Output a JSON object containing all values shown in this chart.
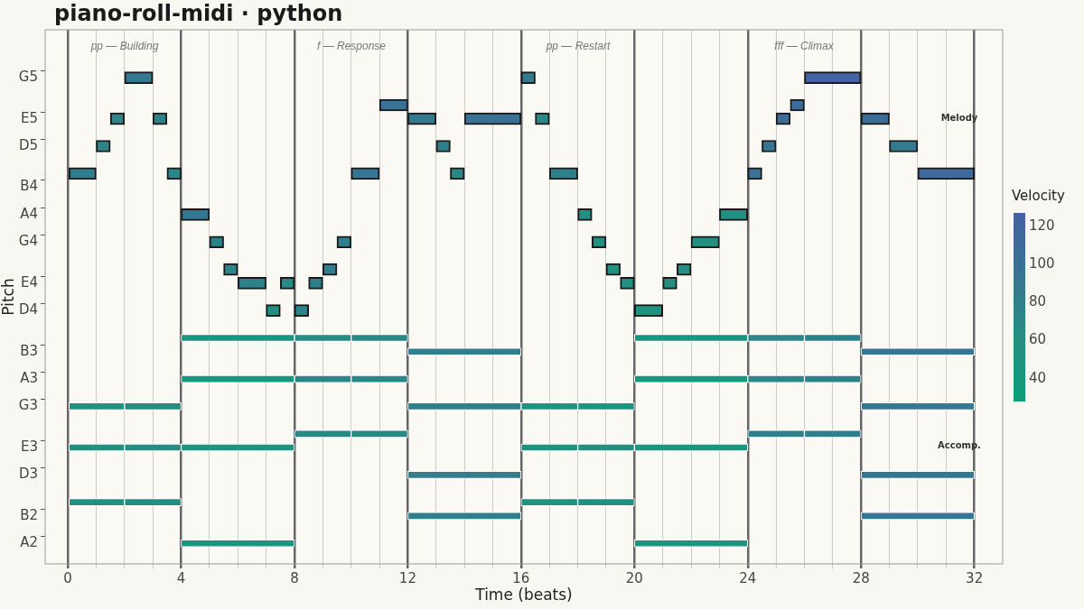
{
  "chart_data": {
    "type": "bar",
    "orientation": "horizontal",
    "title": "piano-roll-midi · python",
    "xlabel": "Time (beats)",
    "ylabel": "Pitch",
    "clabel": "Velocity",
    "clim": [
      28,
      127
    ],
    "cticks": [
      40,
      60,
      80,
      100,
      120
    ],
    "xlim": [
      -0.8,
      33
    ],
    "xticks": [
      0,
      {
        "value": 1,
        "label": null
      },
      {
        "value": 2,
        "label": null
      },
      {
        "value": 3,
        "label": null
      },
      4,
      {
        "value": 5,
        "label": null
      },
      {
        "value": 6,
        "label": null
      },
      {
        "value": 7,
        "label": null
      },
      8,
      {
        "value": 9,
        "label": null
      },
      {
        "value": 10,
        "label": null
      },
      {
        "value": 11,
        "label": null
      },
      12,
      {
        "value": 13,
        "label": null
      },
      {
        "value": 14,
        "label": null
      },
      {
        "value": 15,
        "label": null
      },
      16,
      {
        "value": 17,
        "label": null
      },
      {
        "value": 18,
        "label": null
      },
      {
        "value": 19,
        "label": null
      },
      20,
      {
        "value": 21,
        "label": null
      },
      {
        "value": 22,
        "label": null
      },
      {
        "value": 23,
        "label": null
      },
      24,
      {
        "value": 25,
        "label": null
      },
      {
        "value": 26,
        "label": null
      },
      {
        "value": 27,
        "label": null
      },
      28,
      {
        "value": 29,
        "label": null
      },
      {
        "value": 30,
        "label": null
      },
      {
        "value": 31,
        "label": null
      },
      32
    ],
    "grid": "x",
    "legend": false,
    "categories": [
      null,
      null,
      null,
      "G5",
      null,
      null,
      "E5",
      null,
      "D5",
      null,
      null,
      "B4",
      null,
      "A4",
      null,
      "G4",
      null,
      null,
      "E4",
      null,
      "D4",
      null,
      null,
      "B3",
      null,
      "A3",
      null,
      "G3",
      null,
      null,
      "E3",
      null,
      "D3",
      null,
      null,
      "B2",
      null,
      "A2",
      null
    ],
    "annotations": [
      "pp — Building",
      "f — Response",
      "pp — Restart",
      "fff — Climax",
      "Melody",
      "Accomp."
    ],
    "series": [
      {
        "values": [
          null,
          null,
          null,
          1,
          null,
          1,
          0.5,
          null,
          0.5,
          null,
          1,
          null,
          null,
          1,
          null,
          0.5,
          null,
          0.5,
          1,
          null,
          0.5,
          null,
          null,
          null,
          null,
          null,
          null,
          null,
          null,
          null,
          null,
          null,
          null,
          null,
          null,
          null,
          null,
          null,
          null
        ],
        "base": [
          null,
          null,
          null,
          2,
          null,
          11,
          1.5,
          null,
          1,
          null,
          0,
          null,
          null,
          4,
          null,
          5,
          null,
          5.5,
          6,
          null,
          7,
          null,
          null,
          null,
          null,
          null,
          null,
          null,
          null,
          null,
          null,
          null,
          null,
          null,
          null,
          null,
          null,
          null,
          null
        ],
        "colors": [
          null,
          null,
          null,
          "#337991",
          null,
          "#397197",
          "#2c8588",
          null,
          "#2c8588",
          null,
          "#307d8e",
          null,
          null,
          "#347792",
          null,
          "#2d828a",
          null,
          "#2c8588",
          "#2d828a",
          null,
          "#258e82",
          null,
          null,
          null,
          null,
          null,
          null,
          null,
          null,
          null,
          null,
          null,
          null,
          null,
          null,
          null,
          null,
          null,
          null
        ]
      },
      {
        "values": [
          null,
          null,
          null,
          0.5,
          null,
          0.5,
          0.5,
          null,
          0.5,
          null,
          0.5,
          null,
          null,
          0.5,
          null,
          0.5,
          null,
          0.5,
          0.5,
          null,
          0.5,
          null,
          null,
          null,
          null,
          null,
          null,
          null,
          null,
          null,
          null,
          null,
          null,
          null,
          null,
          null,
          null,
          null,
          null
        ],
        "base": [
          null,
          null,
          null,
          16,
          null,
          25.5,
          3,
          null,
          13,
          null,
          3.5,
          null,
          null,
          18,
          null,
          9.5,
          null,
          9,
          7.5,
          null,
          8,
          null,
          null,
          null,
          null,
          null,
          null,
          null,
          null,
          null,
          null,
          null,
          null,
          null,
          null,
          null,
          null,
          null,
          null
        ],
        "colors": [
          null,
          null,
          null,
          "#327b8f",
          null,
          "#3d6b9c",
          "#2d828a",
          null,
          "#2e818b",
          null,
          "#2a8787",
          null,
          null,
          "#258e82",
          null,
          "#307d8e",
          null,
          "#307d8e",
          "#288a85",
          null,
          "#2c8588",
          null,
          null,
          null,
          null,
          null,
          null,
          null,
          null,
          null,
          null,
          null,
          null,
          null,
          null,
          null,
          null,
          null,
          null
        ]
      },
      {
        "values": [
          null,
          null,
          null,
          2,
          null,
          null,
          1,
          null,
          0.5,
          null,
          1,
          null,
          null,
          1,
          null,
          0.5,
          null,
          0.5,
          0.5,
          null,
          1,
          null,
          null,
          null,
          null,
          null,
          null,
          null,
          null,
          null,
          null,
          null,
          null,
          null,
          null,
          null,
          null,
          null,
          null
        ],
        "base": [
          null,
          null,
          null,
          26,
          null,
          null,
          12,
          null,
          24.5,
          null,
          10,
          null,
          null,
          23,
          null,
          18.5,
          null,
          19,
          8.5,
          null,
          20,
          null,
          null,
          null,
          null,
          null,
          null,
          null,
          null,
          null,
          null,
          null,
          null,
          null,
          null,
          null,
          null,
          null,
          null
        ],
        "colors": [
          null,
          null,
          null,
          "#4463a5",
          null,
          null,
          "#327b8f",
          null,
          "#367594",
          null,
          "#367594",
          null,
          null,
          "#248f81",
          null,
          "#248f81",
          null,
          "#229081",
          "#2e818b",
          null,
          "#209280",
          null,
          null,
          null,
          null,
          null,
          null,
          null,
          null,
          null,
          null,
          null,
          null,
          null,
          null,
          null,
          null,
          null,
          null
        ]
      },
      {
        "values": [
          null,
          null,
          null,
          null,
          null,
          null,
          2,
          null,
          1,
          null,
          0.5,
          null,
          null,
          null,
          null,
          1,
          null,
          0.5,
          0.5,
          null,
          null,
          null,
          null,
          null,
          null,
          null,
          null,
          null,
          null,
          null,
          null,
          null,
          null,
          null,
          null,
          null,
          null,
          null,
          null
        ],
        "base": [
          null,
          null,
          null,
          null,
          null,
          null,
          14,
          null,
          29,
          null,
          13.5,
          null,
          null,
          null,
          null,
          22,
          null,
          21.5,
          19.5,
          null,
          null,
          null,
          null,
          null,
          null,
          null,
          null,
          null,
          null,
          null,
          null,
          null,
          null,
          null,
          null,
          null,
          null,
          null,
          null
        ],
        "colors": [
          null,
          null,
          null,
          null,
          null,
          null,
          "#397197",
          null,
          "#327b8f",
          null,
          "#2a8787",
          null,
          null,
          null,
          null,
          "#248f81",
          null,
          "#258e82",
          "#229081",
          null,
          null,
          null,
          null,
          null,
          null,
          null,
          null,
          null,
          null,
          null,
          null,
          null,
          null,
          null,
          null,
          null,
          null,
          null,
          null
        ]
      },
      {
        "values": [
          null,
          null,
          null,
          null,
          null,
          null,
          0.5,
          null,
          null,
          null,
          1,
          null,
          null,
          null,
          null,
          null,
          null,
          null,
          0.5,
          null,
          null,
          null,
          null,
          null,
          null,
          null,
          null,
          null,
          null,
          null,
          null,
          null,
          null,
          null,
          null,
          null,
          null,
          null,
          null
        ],
        "base": [
          null,
          null,
          null,
          null,
          null,
          null,
          16.5,
          null,
          null,
          null,
          17,
          null,
          null,
          null,
          null,
          null,
          null,
          null,
          21,
          null,
          null,
          null,
          null,
          null,
          null,
          null,
          null,
          null,
          null,
          null,
          null,
          null,
          null,
          null,
          null,
          null,
          null,
          null,
          null
        ],
        "colors": [
          null,
          null,
          null,
          null,
          null,
          null,
          "#298886",
          null,
          null,
          null,
          "#2e818b",
          null,
          null,
          null,
          null,
          null,
          null,
          null,
          "#248f81",
          null,
          null,
          null,
          null,
          null,
          null,
          null,
          null,
          null,
          null,
          null,
          null,
          null,
          null,
          null,
          null,
          null,
          null,
          null,
          null
        ]
      },
      {
        "values": [
          null,
          null,
          null,
          null,
          null,
          null,
          0.5,
          null,
          null,
          null,
          0.5,
          null,
          null,
          null,
          null,
          null,
          null,
          null,
          null,
          null,
          null,
          null,
          null,
          null,
          null,
          null,
          null,
          null,
          null,
          null,
          null,
          null,
          null,
          null,
          null,
          null,
          null,
          null,
          null
        ],
        "base": [
          null,
          null,
          null,
          null,
          null,
          null,
          25,
          null,
          null,
          null,
          24,
          null,
          null,
          null,
          null,
          null,
          null,
          null,
          null,
          null,
          null,
          null,
          null,
          null,
          null,
          null,
          null,
          null,
          null,
          null,
          null,
          null,
          null,
          null,
          null,
          null,
          null,
          null,
          null
        ],
        "colors": [
          null,
          null,
          null,
          null,
          null,
          null,
          "#3b6d9a",
          null,
          null,
          null,
          "#397197",
          null,
          null,
          null,
          null,
          null,
          null,
          null,
          null,
          null,
          null,
          null,
          null,
          null,
          null,
          null,
          null,
          null,
          null,
          null,
          null,
          null,
          null,
          null,
          null,
          null,
          null,
          null,
          null
        ]
      },
      {
        "values": [
          null,
          null,
          null,
          null,
          null,
          null,
          1,
          null,
          null,
          null,
          2,
          null,
          null,
          null,
          null,
          null,
          null,
          null,
          null,
          null,
          null,
          null,
          null,
          null,
          null,
          null,
          null,
          null,
          null,
          null,
          null,
          null,
          null,
          null,
          null,
          null,
          null,
          null,
          null
        ],
        "base": [
          null,
          null,
          null,
          null,
          null,
          null,
          28,
          null,
          null,
          null,
          30,
          null,
          null,
          null,
          null,
          null,
          null,
          null,
          null,
          null,
          null,
          null,
          null,
          null,
          null,
          null,
          null,
          null,
          null,
          null,
          null,
          null,
          null,
          null,
          null,
          null,
          null,
          null,
          null
        ],
        "colors": [
          null,
          null,
          null,
          null,
          null,
          null,
          "#3b6d9a",
          null,
          null,
          null,
          "#3e6a9d",
          null,
          null,
          null,
          null,
          null,
          null,
          null,
          null,
          null,
          null,
          null,
          null,
          null,
          null,
          null,
          null,
          null,
          null,
          null,
          null,
          null,
          null,
          null,
          null,
          null,
          null,
          null,
          null
        ]
      },
      {
        "values": [
          null,
          null,
          null,
          null,
          null,
          null,
          null,
          null,
          null,
          null,
          null,
          null,
          null,
          null,
          null,
          null,
          null,
          null,
          null,
          null,
          null,
          null,
          4,
          4,
          null,
          4,
          null,
          2,
          null,
          2,
          2,
          null,
          4,
          null,
          2,
          4,
          null,
          4,
          null
        ],
        "base": [
          null,
          null,
          null,
          null,
          null,
          null,
          null,
          null,
          null,
          null,
          null,
          null,
          null,
          null,
          null,
          null,
          null,
          null,
          null,
          null,
          null,
          null,
          4,
          12,
          null,
          4,
          null,
          0,
          null,
          8,
          0,
          null,
          12,
          null,
          0,
          12,
          null,
          4,
          null
        ],
        "colors": [
          null,
          null,
          null,
          null,
          null,
          null,
          null,
          null,
          null,
          null,
          null,
          null,
          null,
          null,
          null,
          null,
          null,
          null,
          null,
          null,
          null,
          null,
          "#1c947f",
          "#2f7f8c",
          null,
          "#18977d",
          null,
          "#209280",
          null,
          "#2a8787",
          "#229081",
          null,
          "#2f7f8c",
          null,
          "#229081",
          "#2f7f8c",
          null,
          "#1b957e",
          null
        ]
      },
      {
        "values": [
          null,
          null,
          null,
          null,
          null,
          null,
          null,
          null,
          null,
          null,
          null,
          null,
          null,
          null,
          null,
          null,
          null,
          null,
          null,
          null,
          null,
          null,
          2,
          4,
          null,
          2,
          null,
          2,
          null,
          2,
          2,
          null,
          4,
          null,
          2,
          4,
          null,
          4,
          null
        ],
        "base": [
          null,
          null,
          null,
          null,
          null,
          null,
          null,
          null,
          null,
          null,
          null,
          null,
          null,
          null,
          null,
          null,
          null,
          null,
          null,
          null,
          null,
          null,
          8,
          28,
          null,
          8,
          null,
          2,
          null,
          10,
          2,
          null,
          28,
          null,
          2,
          28,
          null,
          20,
          null
        ],
        "colors": [
          null,
          null,
          null,
          null,
          null,
          null,
          null,
          null,
          null,
          null,
          null,
          null,
          null,
          null,
          null,
          null,
          null,
          null,
          null,
          null,
          null,
          null,
          "#278c83",
          "#367594",
          null,
          "#2c8588",
          null,
          "#248f81",
          null,
          "#2a8787",
          "#258e82",
          null,
          "#347792",
          null,
          "#258e82",
          "#347792",
          null,
          "#1b957e",
          null
        ]
      },
      {
        "values": [
          null,
          null,
          null,
          null,
          null,
          null,
          null,
          null,
          null,
          null,
          null,
          null,
          null,
          null,
          null,
          null,
          null,
          null,
          null,
          null,
          null,
          null,
          2,
          null,
          null,
          2,
          null,
          4,
          null,
          2,
          4,
          null,
          null,
          null,
          2,
          null,
          null,
          null,
          null
        ],
        "base": [
          null,
          null,
          null,
          null,
          null,
          null,
          null,
          null,
          null,
          null,
          null,
          null,
          null,
          null,
          null,
          null,
          null,
          null,
          null,
          null,
          null,
          null,
          10,
          null,
          null,
          10,
          null,
          12,
          null,
          24,
          4,
          null,
          null,
          null,
          16,
          null,
          null,
          null,
          null
        ],
        "colors": [
          null,
          null,
          null,
          null,
          null,
          null,
          null,
          null,
          null,
          null,
          null,
          null,
          null,
          null,
          null,
          null,
          null,
          null,
          null,
          null,
          null,
          null,
          "#298886",
          null,
          null,
          "#2a8787",
          null,
          "#2e818b",
          null,
          "#2e818b",
          "#1c947f",
          null,
          null,
          null,
          "#209280",
          null,
          null,
          null,
          null
        ]
      },
      {
        "values": [
          null,
          null,
          null,
          null,
          null,
          null,
          null,
          null,
          null,
          null,
          null,
          null,
          null,
          null,
          null,
          null,
          null,
          null,
          null,
          null,
          null,
          null,
          4,
          null,
          null,
          4,
          null,
          2,
          null,
          2,
          2,
          null,
          null,
          null,
          2,
          null,
          null,
          null,
          null
        ],
        "base": [
          null,
          null,
          null,
          null,
          null,
          null,
          null,
          null,
          null,
          null,
          null,
          null,
          null,
          null,
          null,
          null,
          null,
          null,
          null,
          null,
          null,
          null,
          20,
          null,
          null,
          20,
          null,
          16,
          null,
          26,
          16,
          null,
          null,
          null,
          18,
          null,
          null,
          null,
          null
        ],
        "colors": [
          null,
          null,
          null,
          null,
          null,
          null,
          null,
          null,
          null,
          null,
          null,
          null,
          null,
          null,
          null,
          null,
          null,
          null,
          null,
          null,
          null,
          null,
          "#1c947f",
          null,
          null,
          "#18977d",
          null,
          "#1b957e",
          null,
          "#2f7f8c",
          "#1e937f",
          null,
          null,
          null,
          "#229081",
          null,
          null,
          null,
          null
        ]
      },
      {
        "values": [
          null,
          null,
          null,
          null,
          null,
          null,
          null,
          null,
          null,
          null,
          null,
          null,
          null,
          null,
          null,
          null,
          null,
          null,
          null,
          null,
          null,
          null,
          2,
          null,
          null,
          2,
          null,
          2,
          null,
          null,
          2,
          null,
          null,
          null,
          null,
          null,
          null,
          null,
          null
        ],
        "base": [
          null,
          null,
          null,
          null,
          null,
          null,
          null,
          null,
          null,
          null,
          null,
          null,
          null,
          null,
          null,
          null,
          null,
          null,
          null,
          null,
          null,
          null,
          24,
          null,
          null,
          24,
          null,
          18,
          null,
          null,
          18,
          null,
          null,
          null,
          null,
          null,
          null,
          null,
          null
        ],
        "colors": [
          null,
          null,
          null,
          null,
          null,
          null,
          null,
          null,
          null,
          null,
          null,
          null,
          null,
          null,
          null,
          null,
          null,
          null,
          null,
          null,
          null,
          null,
          "#2c8588",
          null,
          null,
          "#2c8588",
          null,
          "#1c947f",
          null,
          null,
          "#248f81",
          null,
          null,
          null,
          null,
          null,
          null,
          null,
          null
        ]
      },
      {
        "values": [
          null,
          null,
          null,
          null,
          null,
          null,
          null,
          null,
          null,
          null,
          null,
          null,
          null,
          null,
          null,
          null,
          null,
          null,
          null,
          null,
          null,
          null,
          2,
          null,
          null,
          2,
          null,
          4,
          null,
          null,
          4,
          null,
          null,
          null,
          null,
          null,
          null,
          null,
          null
        ],
        "base": [
          null,
          null,
          null,
          null,
          null,
          null,
          null,
          null,
          null,
          null,
          null,
          null,
          null,
          null,
          null,
          null,
          null,
          null,
          null,
          null,
          null,
          null,
          26,
          null,
          null,
          26,
          null,
          28,
          null,
          null,
          20,
          null,
          null,
          null,
          null,
          null,
          null,
          null,
          null
        ],
        "colors": [
          null,
          null,
          null,
          null,
          null,
          null,
          null,
          null,
          null,
          null,
          null,
          null,
          null,
          null,
          null,
          null,
          null,
          null,
          null,
          null,
          null,
          null,
          "#2d828a",
          null,
          null,
          "#2d828a",
          null,
          "#337991",
          null,
          null,
          "#1b957e",
          null,
          null,
          null,
          null,
          null,
          null,
          null,
          null
        ]
      }
    ]
  }
}
